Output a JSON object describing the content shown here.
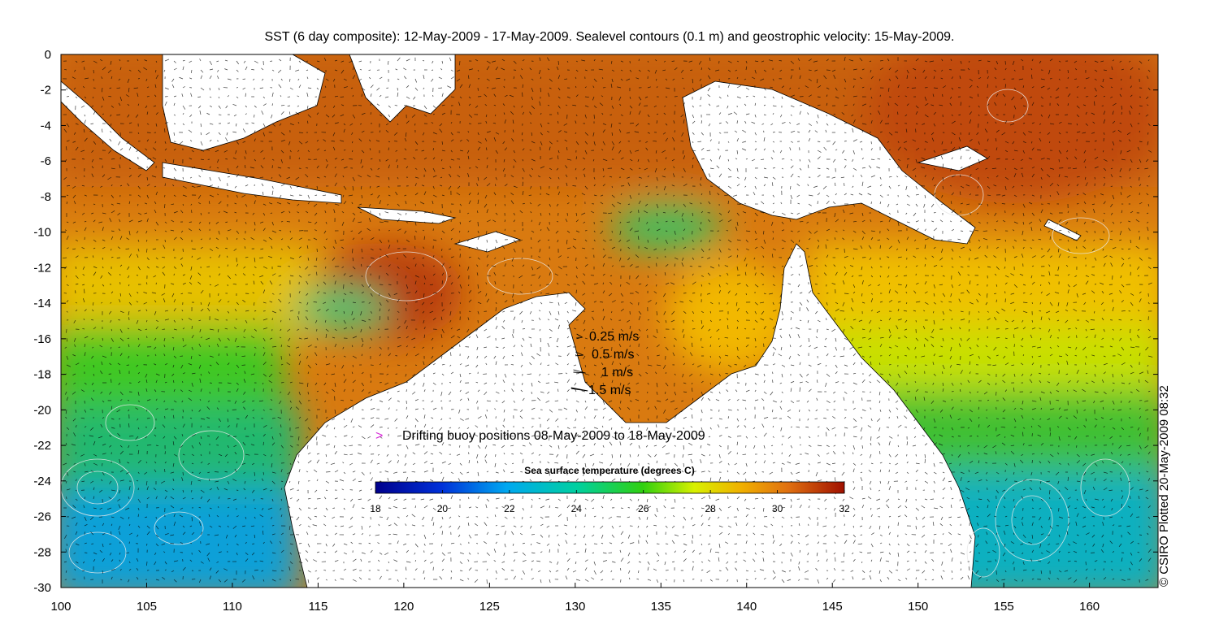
{
  "title": "SST (6 day composite): 12-May-2009 - 17-May-2009. Sealevel contours (0.1 m) and geostrophic velocity: 15-May-2009.",
  "credit": "© CSIRO Plotted 20-May-2009 08:32",
  "axes": {
    "x_ticks": [
      "100",
      "105",
      "110",
      "115",
      "120",
      "125",
      "130",
      "135",
      "140",
      "145",
      "150",
      "155",
      "160"
    ],
    "y_ticks": [
      "0",
      "-2",
      "-4",
      "-6",
      "-8",
      "-10",
      "-12",
      "-14",
      "-16",
      "-18",
      "-20",
      "-22",
      "-24",
      "-26",
      "-28",
      "-30"
    ],
    "lon_range": [
      100,
      164
    ],
    "lat_range": [
      -30,
      0
    ]
  },
  "velocity_legend": [
    {
      "label": "0.25 m/s",
      "speed": 0.25
    },
    {
      "label": "0.5 m/s",
      "speed": 0.5
    },
    {
      "label": "1 m/s",
      "speed": 1
    },
    {
      "label": "1.5 m/s",
      "speed": 1.5
    }
  ],
  "buoy_legend": {
    "marker": ">",
    "label": "Drifting buoy positions 08-May-2009 to 18-May-2009",
    "color": "#d62ad6"
  },
  "colorbar": {
    "title": "Sea surface temperature (degrees C)",
    "ticks": [
      "18",
      "20",
      "22",
      "24",
      "26",
      "28",
      "30",
      "32"
    ],
    "range": [
      18,
      32
    ]
  },
  "colors": {
    "land": "#ffffff",
    "contour": "#e8e8e8",
    "arrow": "#000000",
    "buoy": "#d62ad6"
  }
}
